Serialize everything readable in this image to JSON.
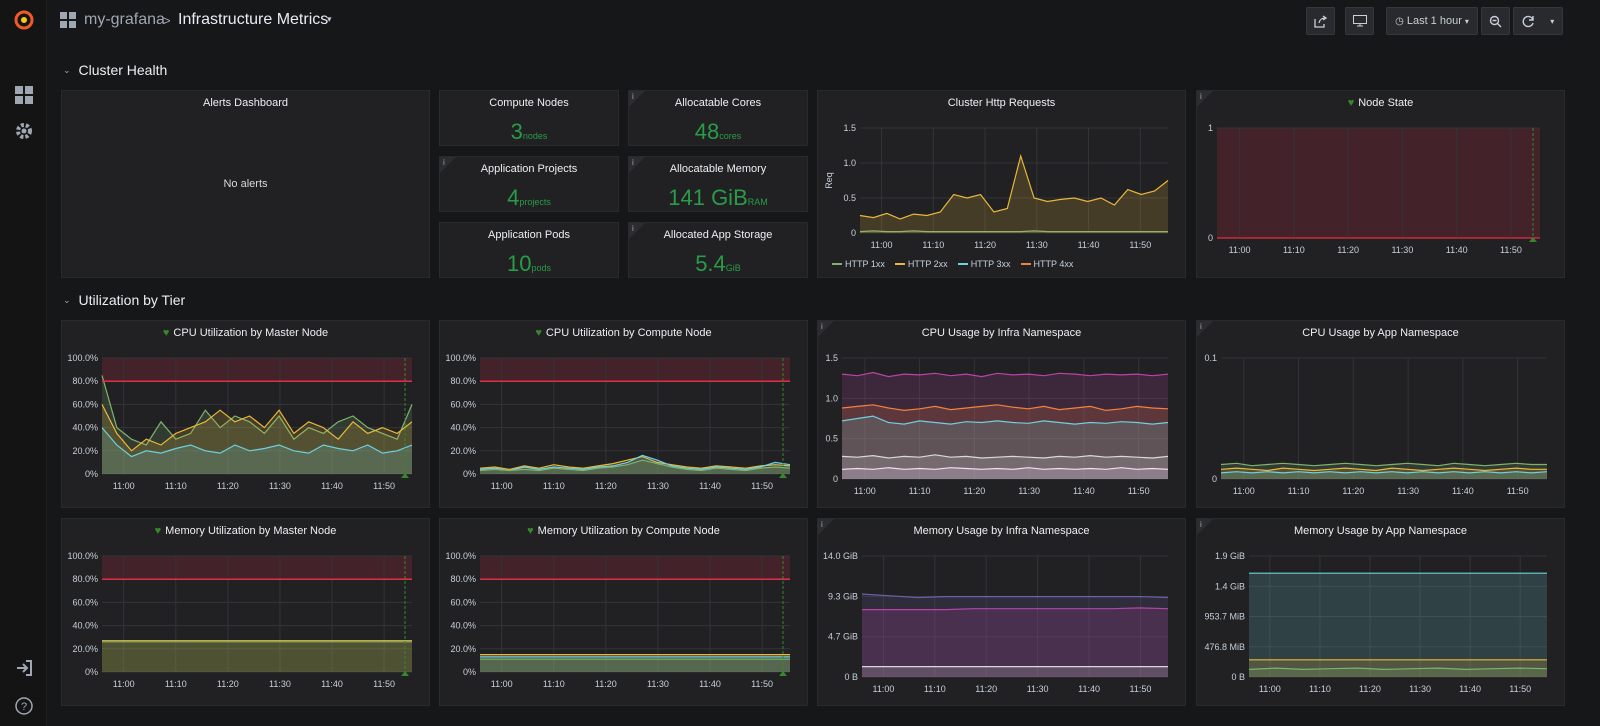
{
  "nav": {
    "org": "my-grafana",
    "separator": ">",
    "dashboard": "Infrastructure Metrics",
    "time_range": "Last 1 hour"
  },
  "rows": {
    "cluster_health": "Cluster Health",
    "utilization": "Utilization by Tier"
  },
  "alerts": {
    "title": "Alerts Dashboard",
    "empty": "No alerts"
  },
  "stats": [
    {
      "title": "Compute Nodes",
      "value": "3",
      "unit": "nodes"
    },
    {
      "title": "Allocatable Cores",
      "value": "48",
      "unit": "cores"
    },
    {
      "title": "Application Projects",
      "value": "4",
      "unit": "projects"
    },
    {
      "title": "Allocatable Memory",
      "value": "141 GiB",
      "unit": "RAM"
    },
    {
      "title": "Application Pods",
      "value": "10",
      "unit": "pods"
    },
    {
      "title": "Allocated App Storage",
      "value": "5.4",
      "unit": "GiB"
    }
  ],
  "colors": {
    "green": "#7eb26d",
    "yellow": "#eab839",
    "cyan": "#6ed0e0",
    "orange": "#ef843c",
    "purple": "#ba43a9",
    "threshold_red": "#e02f44",
    "stat_green": "#299c46",
    "health_green": "#37872d"
  },
  "chart_data": [
    {
      "id": "http",
      "title": "Cluster Http Requests",
      "type": "area",
      "x_ticks": [
        "11:00",
        "11:10",
        "11:20",
        "11:30",
        "11:40",
        "11:50"
      ],
      "y_ticks": [
        "1.5",
        "1.0",
        "0.5",
        "0"
      ],
      "ylabel": "Req",
      "ylim": [
        0,
        1.5
      ],
      "legend": "bottom",
      "series": [
        {
          "name": "HTTP 1xx",
          "color": "#7eb26d",
          "values": [
            0.02,
            0.03,
            0.02,
            0.02,
            0.03,
            0.02,
            0.02,
            0.02,
            0.02,
            0.02,
            0.02,
            0.02,
            0.02,
            0.03,
            0.02,
            0.02,
            0.02,
            0.02,
            0.02,
            0.02,
            0.02,
            0.02,
            0.02,
            0.02
          ]
        },
        {
          "name": "HTTP 2xx",
          "color": "#eab839",
          "values": [
            0.25,
            0.22,
            0.28,
            0.2,
            0.27,
            0.25,
            0.3,
            0.55,
            0.5,
            0.55,
            0.3,
            0.35,
            1.1,
            0.5,
            0.45,
            0.48,
            0.5,
            0.45,
            0.5,
            0.4,
            0.62,
            0.55,
            0.6,
            0.75
          ]
        },
        {
          "name": "HTTP 3xx",
          "color": "#6ed0e0",
          "values": []
        },
        {
          "name": "HTTP 4xx",
          "color": "#ef843c",
          "values": []
        }
      ]
    },
    {
      "id": "nodestate",
      "title": "Node State",
      "type": "line",
      "x_ticks": [
        "11:00",
        "11:10",
        "11:20",
        "11:30",
        "11:40",
        "11:50"
      ],
      "y_ticks": [
        "1",
        "0"
      ],
      "ylim": [
        0,
        1
      ],
      "series": [
        {
          "color": "#e02f44",
          "values": [
            0,
            0,
            0,
            0,
            0,
            0,
            0,
            0,
            0,
            0,
            0,
            0
          ]
        }
      ]
    },
    {
      "id": "cpu_master",
      "title": "CPU Utilization by Master Node",
      "type": "area",
      "x_ticks": [
        "11:00",
        "11:10",
        "11:20",
        "11:30",
        "11:40",
        "11:50"
      ],
      "y_ticks": [
        "100.0%",
        "80.0%",
        "60.0%",
        "40.0%",
        "20.0%",
        "0%"
      ],
      "ylim": [
        0,
        100
      ],
      "threshold": 80,
      "series": [
        {
          "color": "#7eb26d",
          "values": [
            85,
            40,
            30,
            25,
            45,
            30,
            35,
            55,
            40,
            50,
            45,
            35,
            50,
            30,
            40,
            35,
            45,
            50,
            40,
            35,
            30,
            60
          ]
        },
        {
          "color": "#eab839",
          "values": [
            60,
            35,
            20,
            30,
            25,
            35,
            40,
            45,
            55,
            45,
            50,
            40,
            55,
            35,
            45,
            40,
            30,
            45,
            35,
            40,
            35,
            45
          ]
        },
        {
          "color": "#6ed0e0",
          "values": [
            40,
            25,
            15,
            20,
            18,
            22,
            25,
            20,
            18,
            25,
            20,
            22,
            25,
            20,
            18,
            25,
            22,
            20,
            25,
            18,
            20,
            25
          ]
        }
      ]
    },
    {
      "id": "cpu_compute",
      "title": "CPU Utilization by Compute Node",
      "type": "area",
      "x_ticks": [
        "11:00",
        "11:10",
        "11:20",
        "11:30",
        "11:40",
        "11:50"
      ],
      "y_ticks": [
        "100.0%",
        "80.0%",
        "60.0%",
        "40.0%",
        "20.0%",
        "0%"
      ],
      "ylim": [
        0,
        100
      ],
      "threshold": 80,
      "series": [
        {
          "color": "#eab839",
          "values": [
            5,
            6,
            4,
            7,
            5,
            8,
            6,
            5,
            7,
            9,
            12,
            15,
            10,
            8,
            6,
            5,
            7,
            6,
            5,
            7,
            8,
            7
          ]
        },
        {
          "color": "#6ed0e0",
          "values": [
            4,
            5,
            3,
            6,
            4,
            6,
            5,
            4,
            6,
            7,
            10,
            16,
            12,
            7,
            5,
            4,
            6,
            5,
            4,
            6,
            10,
            8
          ]
        },
        {
          "color": "#7eb26d",
          "values": [
            3,
            4,
            3,
            4,
            3,
            5,
            4,
            3,
            5,
            6,
            8,
            12,
            9,
            6,
            4,
            3,
            5,
            4,
            3,
            5,
            6,
            5
          ]
        }
      ]
    },
    {
      "id": "cpu_infra",
      "title": "CPU Usage by Infra Namespace",
      "type": "area",
      "x_ticks": [
        "11:00",
        "11:10",
        "11:20",
        "11:30",
        "11:40",
        "11:50"
      ],
      "y_ticks": [
        "1.5",
        "1.0",
        "0.5",
        "0"
      ],
      "ylim": [
        0,
        1.5
      ],
      "series": [
        {
          "color": "#ba43a9",
          "values": [
            1.3,
            1.28,
            1.32,
            1.27,
            1.3,
            1.29,
            1.31,
            1.28,
            1.3,
            1.27,
            1.31,
            1.29,
            1.3,
            1.28,
            1.31,
            1.3,
            1.28,
            1.3,
            1.29,
            1.3,
            1.28,
            1.3
          ]
        },
        {
          "color": "#ef843c",
          "values": [
            0.88,
            0.9,
            0.92,
            0.88,
            0.85,
            0.87,
            0.9,
            0.86,
            0.88,
            0.9,
            0.92,
            0.89,
            0.87,
            0.9,
            0.86,
            0.88,
            0.9,
            0.85,
            0.87,
            0.9,
            0.88,
            0.87
          ]
        },
        {
          "color": "#6ed0e0",
          "values": [
            0.72,
            0.75,
            0.78,
            0.7,
            0.68,
            0.72,
            0.7,
            0.68,
            0.71,
            0.7,
            0.72,
            0.7,
            0.69,
            0.72,
            0.7,
            0.68,
            0.7,
            0.69,
            0.71,
            0.7,
            0.68,
            0.7
          ]
        },
        {
          "color": "#d8d9da",
          "values": [
            0.28,
            0.27,
            0.29,
            0.26,
            0.28,
            0.27,
            0.3,
            0.27,
            0.28,
            0.26,
            0.27,
            0.28,
            0.27,
            0.26,
            0.28,
            0.27,
            0.29,
            0.27,
            0.28,
            0.27,
            0.26,
            0.28
          ]
        },
        {
          "color": "#f9d9f9",
          "values": [
            0.12,
            0.13,
            0.12,
            0.14,
            0.12,
            0.13,
            0.12,
            0.14,
            0.13,
            0.12,
            0.13,
            0.12,
            0.14,
            0.12,
            0.13,
            0.12,
            0.13,
            0.12,
            0.14,
            0.12,
            0.13,
            0.12
          ]
        }
      ]
    },
    {
      "id": "cpu_app",
      "title": "CPU Usage by App Namespace",
      "type": "area",
      "x_ticks": [
        "11:00",
        "11:10",
        "11:20",
        "11:30",
        "11:40",
        "11:50"
      ],
      "y_ticks": [
        "0.1",
        "0"
      ],
      "ylim": [
        0,
        0.1
      ],
      "series": [
        {
          "color": "#7eb26d",
          "values": [
            0.012,
            0.013,
            0.011,
            0.012,
            0.013,
            0.012,
            0.011,
            0.012,
            0.013,
            0.012,
            0.011,
            0.012,
            0.013,
            0.012,
            0.011,
            0.013,
            0.012,
            0.011,
            0.012,
            0.013,
            0.012,
            0.012
          ]
        },
        {
          "color": "#eab839",
          "values": [
            0.008,
            0.009,
            0.008,
            0.007,
            0.009,
            0.008,
            0.007,
            0.008,
            0.009,
            0.008,
            0.007,
            0.009,
            0.008,
            0.007,
            0.008,
            0.009,
            0.008,
            0.007,
            0.008,
            0.009,
            0.008,
            0.008
          ]
        },
        {
          "color": "#6ed0e0",
          "values": [
            0.005,
            0.006,
            0.005,
            0.006,
            0.005,
            0.006,
            0.005,
            0.006,
            0.005,
            0.006,
            0.005,
            0.006,
            0.005,
            0.006,
            0.005,
            0.006,
            0.005,
            0.006,
            0.005,
            0.006,
            0.005,
            0.006
          ]
        }
      ]
    },
    {
      "id": "mem_master",
      "title": "Memory Utilization by Master Node",
      "type": "area",
      "x_ticks": [
        "11:00",
        "11:10",
        "11:20",
        "11:30",
        "11:40",
        "11:50"
      ],
      "y_ticks": [
        "100.0%",
        "80.0%",
        "60.0%",
        "40.0%",
        "20.0%",
        "0%"
      ],
      "ylim": [
        0,
        100
      ],
      "threshold": 80,
      "series": [
        {
          "color": "#eab839",
          "values": [
            27,
            27,
            27,
            27,
            27,
            27,
            27,
            27,
            27,
            27,
            27,
            27
          ]
        },
        {
          "color": "#7eb26d",
          "values": [
            26,
            26,
            26,
            26,
            26,
            26,
            26,
            26,
            26,
            26,
            26,
            26
          ]
        }
      ]
    },
    {
      "id": "mem_compute",
      "title": "Memory Utilization by Compute Node",
      "type": "area",
      "x_ticks": [
        "11:00",
        "11:10",
        "11:20",
        "11:30",
        "11:40",
        "11:50"
      ],
      "y_ticks": [
        "100.0%",
        "80.0%",
        "60.0%",
        "40.0%",
        "20.0%",
        "0%"
      ],
      "ylim": [
        0,
        100
      ],
      "threshold": 80,
      "series": [
        {
          "color": "#eab839",
          "values": [
            15,
            15,
            15,
            15,
            15,
            15,
            15,
            15,
            15,
            15,
            15,
            15
          ]
        },
        {
          "color": "#6ed0e0",
          "values": [
            13,
            13,
            13,
            13,
            13,
            13,
            13,
            13,
            13,
            13,
            13,
            13
          ]
        },
        {
          "color": "#7eb26d",
          "values": [
            11,
            11,
            11,
            11,
            11,
            11,
            11,
            11,
            11,
            11,
            11,
            11
          ]
        }
      ]
    },
    {
      "id": "mem_infra",
      "title": "Memory Usage by Infra Namespace",
      "type": "area",
      "x_ticks": [
        "11:00",
        "11:10",
        "11:20",
        "11:30",
        "11:40",
        "11:50"
      ],
      "y_ticks": [
        "14.0 GiB",
        "9.3 GiB",
        "4.7 GiB",
        "0 B"
      ],
      "ylim": [
        0,
        14
      ],
      "series": [
        {
          "color": "#6d60a8",
          "values": [
            9.6,
            9.4,
            9.2,
            9.3,
            9.3,
            9.3,
            9.3,
            9.3,
            9.3,
            9.3,
            9.3,
            9.2
          ]
        },
        {
          "color": "#ba43a9",
          "values": [
            7.8,
            7.8,
            7.8,
            7.8,
            7.9,
            7.9,
            7.9,
            7.9,
            7.9,
            7.9,
            8.0,
            7.9
          ]
        },
        {
          "color": "#d8d9da",
          "values": [
            1.2,
            1.2,
            1.2,
            1.2,
            1.2,
            1.2,
            1.2,
            1.2,
            1.2,
            1.2,
            1.2,
            1.2
          ]
        }
      ]
    },
    {
      "id": "mem_app",
      "title": "Memory Usage by App Namespace",
      "type": "area",
      "x_ticks": [
        "11:00",
        "11:10",
        "11:20",
        "11:30",
        "11:40",
        "11:50"
      ],
      "y_ticks": [
        "1.9 GiB",
        "1.4 GiB",
        "953.7 MiB",
        "476.8 MiB",
        "0 B"
      ],
      "ylim": [
        0,
        1.9
      ],
      "series": [
        {
          "color": "#6ed0e0",
          "values": [
            1.63,
            1.63,
            1.63,
            1.63,
            1.63,
            1.63,
            1.63,
            1.63,
            1.63,
            1.63,
            1.63,
            1.63
          ]
        },
        {
          "color": "#eab839",
          "values": [
            0.27,
            0.27,
            0.27,
            0.27,
            0.27,
            0.27,
            0.27,
            0.27,
            0.27,
            0.27,
            0.27,
            0.27
          ]
        },
        {
          "color": "#7eb26d",
          "values": [
            0.12,
            0.14,
            0.12,
            0.13,
            0.14,
            0.12,
            0.13,
            0.14,
            0.12,
            0.13,
            0.14,
            0.13
          ]
        }
      ]
    }
  ]
}
